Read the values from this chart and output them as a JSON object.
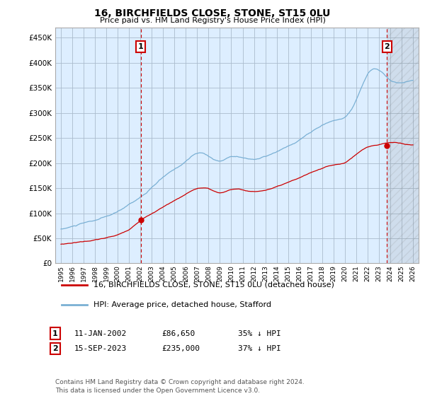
{
  "title": "16, BIRCHFIELDS CLOSE, STONE, ST15 0LU",
  "subtitle": "Price paid vs. HM Land Registry's House Price Index (HPI)",
  "legend_property": "16, BIRCHFIELDS CLOSE, STONE, ST15 0LU (detached house)",
  "legend_hpi": "HPI: Average price, detached house, Stafford",
  "annotation1_label": "1",
  "annotation1_date": "11-JAN-2002",
  "annotation1_price": "£86,650",
  "annotation1_hpi": "35% ↓ HPI",
  "annotation2_label": "2",
  "annotation2_date": "15-SEP-2023",
  "annotation2_price": "£235,000",
  "annotation2_hpi": "37% ↓ HPI",
  "footer": "Contains HM Land Registry data © Crown copyright and database right 2024.\nThis data is licensed under the Open Government Licence v3.0.",
  "property_color": "#cc0000",
  "hpi_color": "#7ab0d4",
  "annotation_color": "#cc0000",
  "background_color": "#ffffff",
  "plot_bg_color": "#ddeeff",
  "grid_color": "#aabbcc",
  "ylim": [
    0,
    470000
  ],
  "yticks": [
    0,
    50000,
    100000,
    150000,
    200000,
    250000,
    300000,
    350000,
    400000,
    450000
  ],
  "sale1_x": 2002.03,
  "sale1_y": 86650,
  "sale2_x": 2023.71,
  "sale2_y": 235000,
  "vline1_x": 2002.03,
  "vline2_x": 2023.71,
  "xmin": 1995,
  "xmax": 2026
}
